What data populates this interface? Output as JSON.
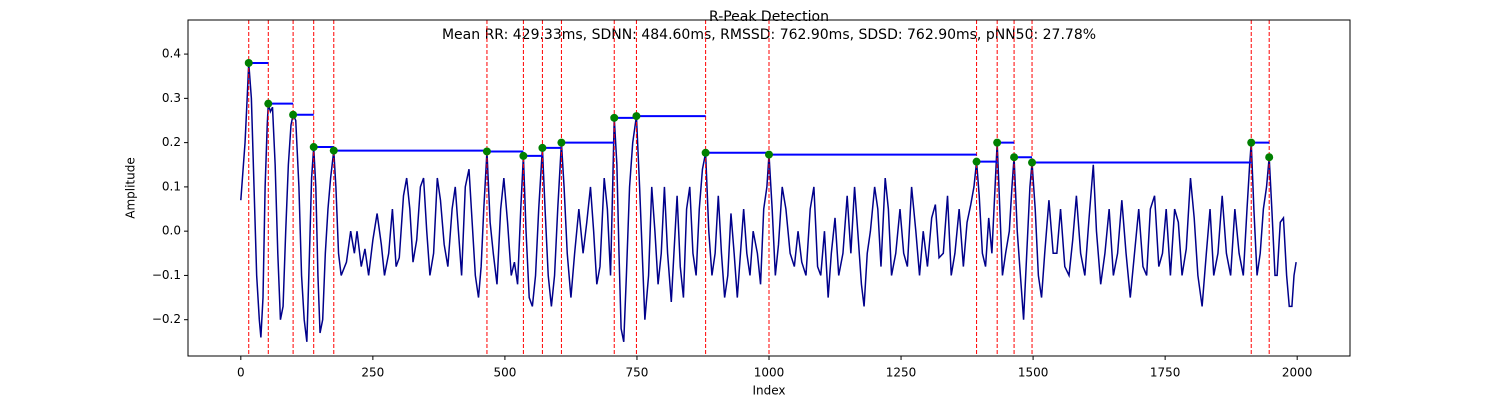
{
  "chart_data": {
    "type": "line",
    "title": "R-Peak Detection",
    "subtitle": "Mean RR: 429.33ms, SDNN: 484.60ms, RMSSD: 762.90ms, SDSD: 762.90ms, pNN50: 27.78%",
    "xlabel": "Index",
    "ylabel": "Amplitude",
    "xlim": [
      -100,
      2100
    ],
    "xticks": [
      0,
      250,
      500,
      750,
      1000,
      1250,
      1500,
      1750,
      2000
    ],
    "ylim": [
      -0.282,
      0.477
    ],
    "yticks": [
      {
        "value": -0.2,
        "label": "−0.2"
      },
      {
        "value": -0.1,
        "label": "−0.1"
      },
      {
        "value": 0.0,
        "label": "0.0"
      },
      0.1,
      0.2,
      0.3,
      0.4
    ],
    "grid": false,
    "series": [
      {
        "type": "line",
        "color": "#00008b",
        "x": [
          0,
          8,
          12,
          15,
          20,
          25,
          30,
          35,
          38,
          42,
          46,
          50,
          52,
          56,
          60,
          65,
          70,
          75,
          80,
          85,
          90,
          95,
          99,
          104,
          110,
          115,
          120,
          125,
          130,
          134,
          138,
          142,
          146,
          150,
          155,
          160,
          165,
          170,
          176,
          180,
          185,
          190,
          200,
          208,
          215,
          220,
          228,
          235,
          242,
          250,
          258,
          266,
          272,
          280,
          287,
          294,
          300,
          308,
          314,
          320,
          326,
          333,
          340,
          346,
          352,
          358,
          365,
          372,
          378,
          385,
          392,
          400,
          406,
          412,
          418,
          425,
          432,
          438,
          444,
          450,
          455,
          460,
          466,
          472,
          478,
          485,
          492,
          498,
          505,
          512,
          518,
          524,
          530,
          535,
          540,
          546,
          552,
          558,
          564,
          571,
          576,
          582,
          588,
          594,
          600,
          607,
          612,
          618,
          625,
          632,
          640,
          648,
          655,
          662,
          668,
          674,
          680,
          688,
          694,
          700,
          704,
          707,
          712,
          716,
          720,
          725,
          730,
          736,
          742,
          749,
          755,
          760,
          765,
          772,
          778,
          784,
          790,
          796,
          802,
          808,
          815,
          820,
          826,
          832,
          838,
          844,
          850,
          856,
          862,
          868,
          874,
          880,
          886,
          892,
          898,
          904,
          910,
          916,
          922,
          928,
          934,
          940,
          946,
          952,
          958,
          964,
          970,
          978,
          984,
          990,
          996,
          1000,
          1006,
          1012,
          1018,
          1025,
          1032,
          1040,
          1048,
          1055,
          1062,
          1070,
          1078,
          1085,
          1092,
          1098,
          1105,
          1112,
          1118,
          1125,
          1132,
          1140,
          1148,
          1155,
          1162,
          1168,
          1175,
          1180,
          1186,
          1192,
          1200,
          1206,
          1212,
          1220,
          1226,
          1232,
          1240,
          1248,
          1255,
          1262,
          1270,
          1278,
          1285,
          1292,
          1300,
          1308,
          1315,
          1322,
          1330,
          1338,
          1345,
          1352,
          1360,
          1368,
          1375,
          1382,
          1388,
          1393,
          1398,
          1404,
          1410,
          1416,
          1422,
          1428,
          1432,
          1437,
          1442,
          1448,
          1455,
          1460,
          1464,
          1470,
          1476,
          1482,
          1488,
          1494,
          1498,
          1504,
          1510,
          1516,
          1522,
          1530,
          1538,
          1545,
          1552,
          1560,
          1568,
          1575,
          1582,
          1590,
          1598,
          1606,
          1614,
          1620,
          1628,
          1636,
          1644,
          1652,
          1660,
          1668,
          1676,
          1684,
          1692,
          1700,
          1708,
          1715,
          1722,
          1730,
          1738,
          1745,
          1752,
          1760,
          1768,
          1775,
          1782,
          1790,
          1798,
          1805,
          1812,
          1820,
          1828,
          1835,
          1842,
          1850,
          1858,
          1866,
          1874,
          1882,
          1890,
          1898,
          1905,
          1910,
          1913,
          1918,
          1924,
          1930,
          1936,
          1942,
          1947,
          1952,
          1958,
          1962,
          1968,
          1974,
          1980,
          1985,
          1990,
          1994,
          1998
        ],
        "values": [
          0.07,
          0.2,
          0.3,
          0.38,
          0.3,
          0.1,
          -0.1,
          -0.2,
          -0.24,
          -0.15,
          0.1,
          0.24,
          0.288,
          0.27,
          0.28,
          0.15,
          -0.05,
          -0.2,
          -0.17,
          0.0,
          0.15,
          0.24,
          0.263,
          0.25,
          0.1,
          -0.1,
          -0.2,
          -0.25,
          -0.05,
          0.12,
          0.19,
          0.1,
          -0.1,
          -0.23,
          -0.2,
          -0.05,
          0.05,
          0.12,
          0.182,
          0.1,
          -0.05,
          -0.1,
          -0.07,
          0.0,
          -0.05,
          0.0,
          -0.08,
          -0.04,
          -0.1,
          -0.02,
          0.04,
          -0.03,
          -0.1,
          -0.05,
          0.05,
          -0.08,
          -0.06,
          0.08,
          0.12,
          0.05,
          -0.07,
          -0.02,
          0.1,
          0.12,
          0.0,
          -0.1,
          -0.05,
          0.12,
          0.07,
          -0.03,
          -0.08,
          0.05,
          0.1,
          0.0,
          -0.1,
          0.1,
          0.14,
          0.02,
          -0.1,
          -0.15,
          -0.08,
          0.05,
          0.18,
          0.02,
          -0.05,
          -0.12,
          0.05,
          0.12,
          0.02,
          -0.1,
          -0.07,
          -0.12,
          0.05,
          0.17,
          0.0,
          -0.15,
          -0.17,
          -0.1,
          0.05,
          0.188,
          0.05,
          -0.1,
          -0.17,
          -0.1,
          0.05,
          0.2,
          0.1,
          -0.05,
          -0.15,
          -0.05,
          0.05,
          -0.05,
          0.02,
          0.1,
          0.0,
          -0.12,
          -0.08,
          0.12,
          0.05,
          -0.1,
          0.1,
          0.256,
          0.15,
          -0.05,
          -0.22,
          -0.25,
          -0.1,
          0.1,
          0.2,
          0.26,
          0.1,
          -0.05,
          -0.2,
          -0.1,
          0.1,
          0.0,
          -0.12,
          -0.05,
          0.1,
          -0.05,
          -0.16,
          -0.05,
          0.08,
          -0.08,
          -0.15,
          0.05,
          0.1,
          -0.05,
          -0.1,
          0.05,
          0.14,
          0.177,
          0.0,
          -0.1,
          -0.05,
          0.08,
          -0.05,
          -0.15,
          -0.1,
          0.04,
          -0.05,
          -0.15,
          -0.05,
          0.05,
          -0.05,
          -0.1,
          0.0,
          -0.05,
          -0.12,
          0.05,
          0.1,
          0.173,
          0.05,
          -0.1,
          -0.03,
          0.1,
          0.05,
          -0.05,
          -0.08,
          0.0,
          -0.07,
          -0.1,
          0.05,
          0.1,
          -0.08,
          -0.1,
          0.0,
          -0.15,
          -0.05,
          0.03,
          -0.1,
          -0.05,
          0.08,
          -0.05,
          0.1,
          0.0,
          -0.12,
          -0.17,
          -0.05,
          0.0,
          0.1,
          0.05,
          -0.08,
          0.12,
          0.05,
          -0.1,
          -0.05,
          0.05,
          -0.05,
          -0.08,
          0.1,
          0.0,
          -0.1,
          0.0,
          -0.08,
          0.03,
          0.06,
          -0.06,
          -0.05,
          0.08,
          -0.1,
          -0.05,
          0.05,
          -0.08,
          0.02,
          0.06,
          0.1,
          0.157,
          0.08,
          -0.05,
          -0.08,
          0.03,
          -0.05,
          0.1,
          0.2,
          0.05,
          -0.1,
          -0.05,
          0.0,
          0.1,
          0.167,
          0.0,
          -0.1,
          -0.2,
          -0.05,
          0.1,
          0.155,
          0.05,
          -0.1,
          -0.15,
          -0.05,
          0.07,
          -0.05,
          -0.05,
          0.05,
          -0.08,
          -0.1,
          -0.02,
          0.08,
          -0.05,
          -0.1,
          0.03,
          0.15,
          0.0,
          -0.12,
          -0.05,
          0.05,
          -0.1,
          -0.05,
          0.07,
          -0.05,
          -0.15,
          -0.05,
          0.05,
          -0.08,
          -0.1,
          0.05,
          0.08,
          -0.08,
          -0.05,
          0.05,
          -0.1,
          0.05,
          0.02,
          -0.1,
          -0.04,
          0.12,
          0.03,
          -0.1,
          -0.17,
          -0.05,
          0.05,
          -0.1,
          -0.05,
          0.08,
          -0.05,
          -0.1,
          0.05,
          -0.05,
          -0.1,
          0.05,
          0.15,
          0.2,
          0.05,
          -0.1,
          -0.05,
          0.05,
          0.1,
          0.167,
          0.05,
          -0.1,
          -0.1,
          0.02,
          0.03,
          -0.1,
          -0.17,
          -0.17,
          -0.1,
          -0.07
        ]
      },
      {
        "type": "peaks",
        "color": "green",
        "line_color": "red",
        "interval_color": "blue",
        "x": [
          15,
          52,
          99,
          138,
          176,
          466,
          535,
          571,
          607,
          707,
          749,
          880,
          1000,
          1393,
          1432,
          1464,
          1498,
          1913,
          1947
        ],
        "values": [
          0.38,
          0.288,
          0.263,
          0.19,
          0.182,
          0.18,
          0.17,
          0.188,
          0.2,
          0.256,
          0.26,
          0.177,
          0.173,
          0.157,
          0.2,
          0.167,
          0.155,
          0.2,
          0.167
        ]
      }
    ]
  }
}
